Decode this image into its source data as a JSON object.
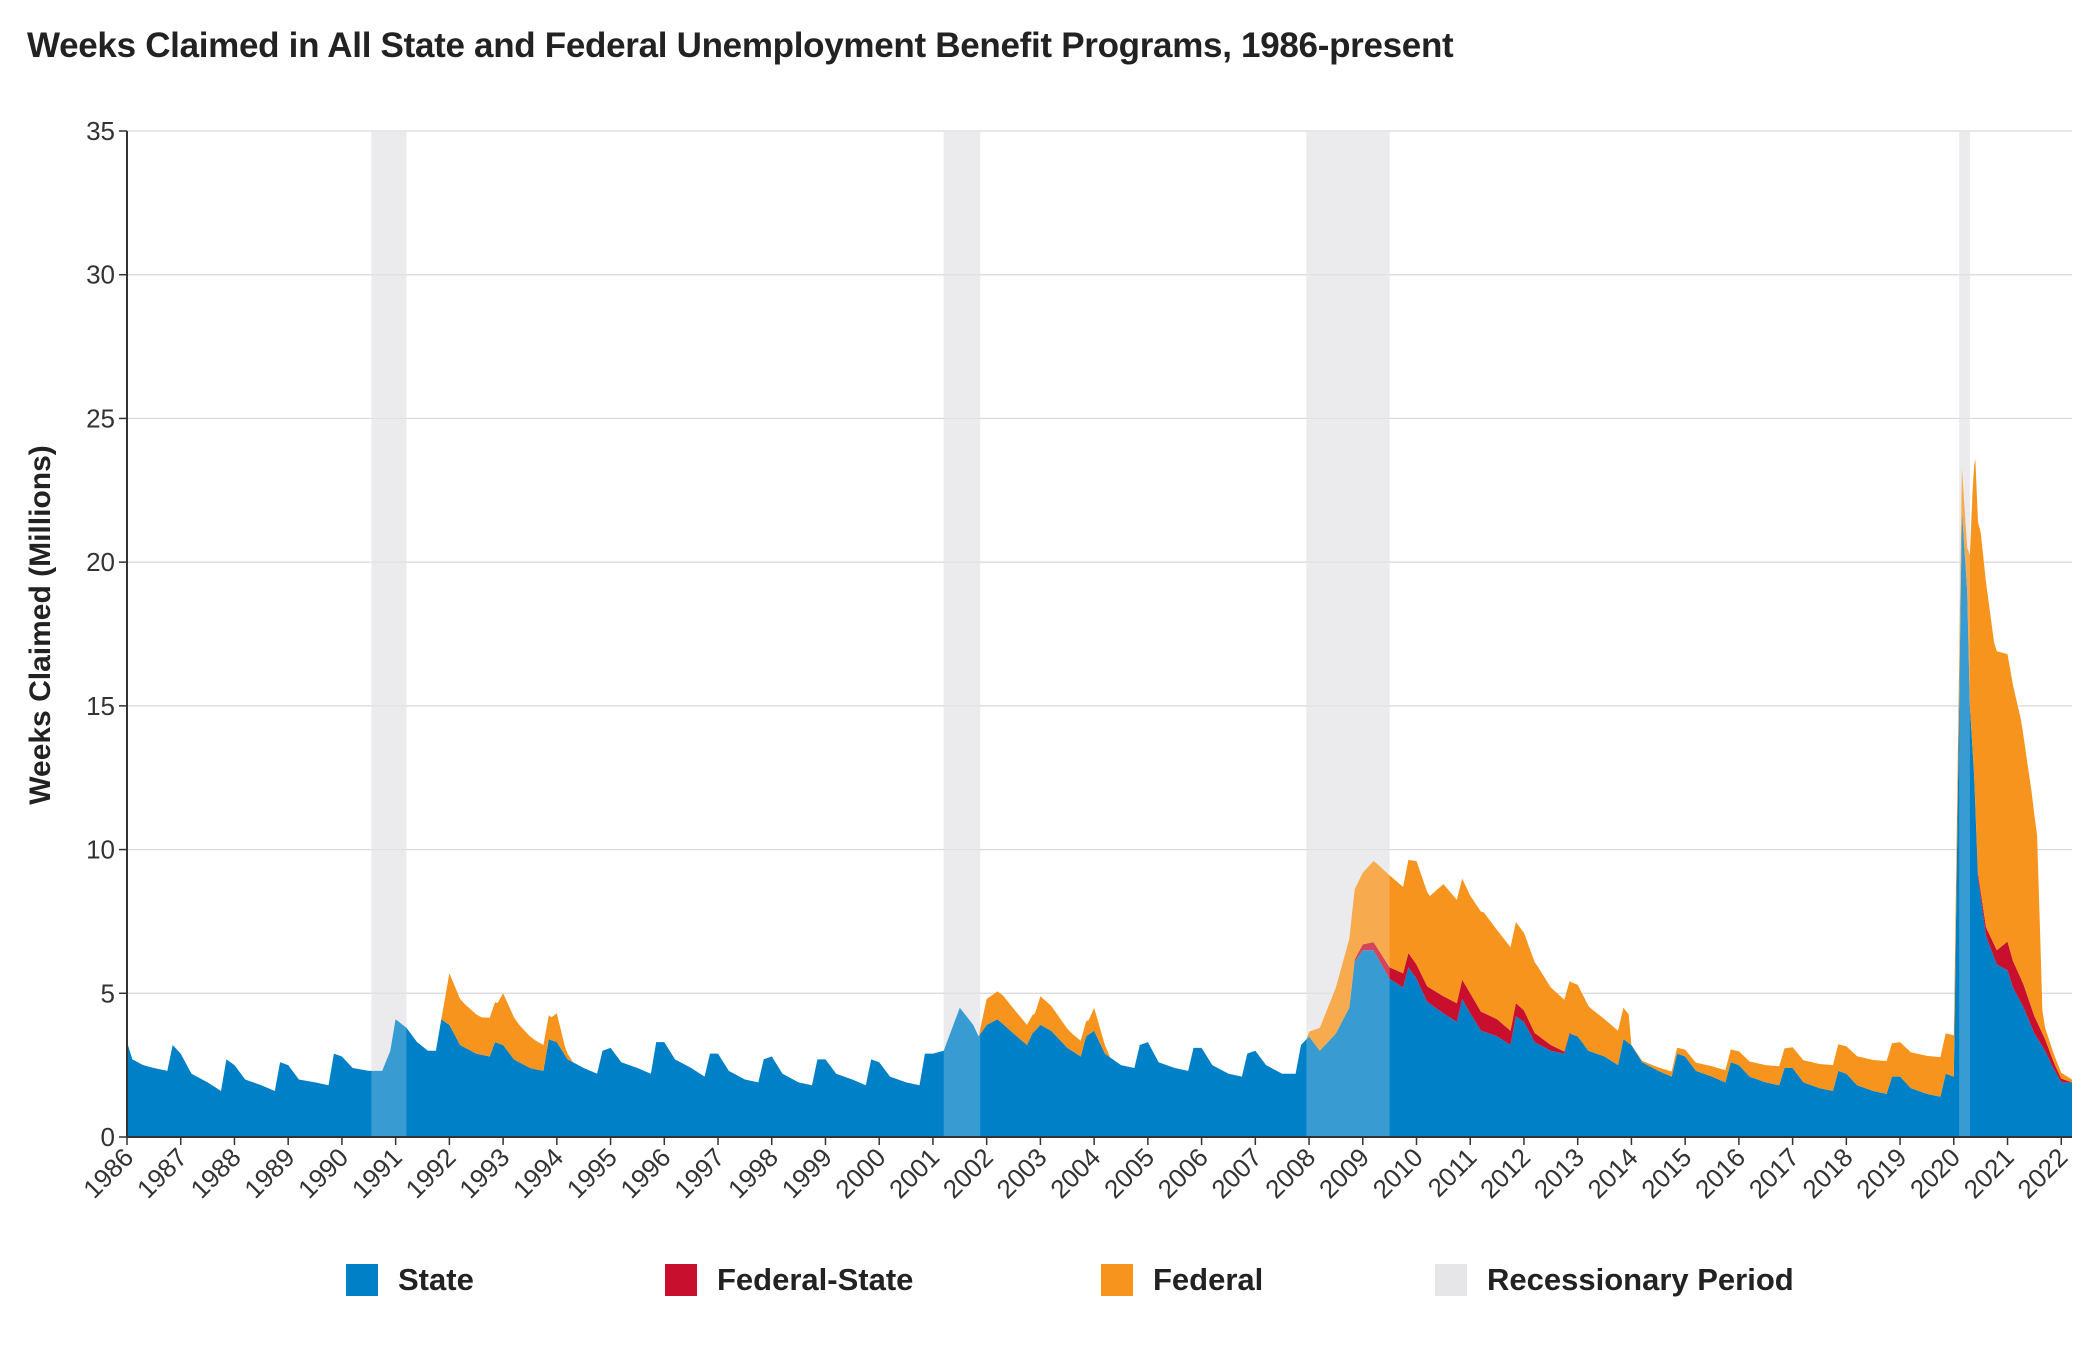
{
  "title": "Weeks Claimed in All State and Federal Unemployment Benefit Programs, 1986-present",
  "chart_data": {
    "type": "area",
    "stacked": true,
    "ylabel": "Weeks Claimed (Millions)",
    "xlabel": "",
    "ylim": [
      0,
      35
    ],
    "yticks": [
      0,
      5,
      10,
      15,
      20,
      25,
      30,
      35
    ],
    "xlim": [
      1986,
      2022.2
    ],
    "xticks": [
      "1986",
      "1987",
      "1988",
      "1989",
      "1990",
      "1991",
      "1992",
      "1993",
      "1994",
      "1995",
      "1996",
      "1997",
      "1998",
      "1999",
      "2000",
      "2001",
      "2002",
      "2003",
      "2004",
      "2005",
      "2006",
      "2007",
      "2008",
      "2009",
      "2010",
      "2011",
      "2012",
      "2013",
      "2014",
      "2015",
      "2016",
      "2017",
      "2018",
      "2019",
      "2020",
      "2021",
      "2022"
    ],
    "grid": "horizontal",
    "legend_position": "bottom",
    "colors": {
      "State": "#0080c6",
      "Federal-State": "#c8102e",
      "Federal": "#f7941d",
      "Recessionary Period": "#e6e6e8"
    },
    "legend": [
      "State",
      "Federal-State",
      "Federal",
      "Recessionary Period"
    ],
    "recessions": [
      {
        "start": 1990.55,
        "end": 1991.2
      },
      {
        "start": 2001.2,
        "end": 2001.88
      },
      {
        "start": 2007.95,
        "end": 2009.5
      },
      {
        "start": 2020.1,
        "end": 2020.3
      }
    ],
    "series": [
      {
        "name": "State",
        "x": [
          1986.0,
          1986.1,
          1986.3,
          1986.5,
          1986.75,
          1986.85,
          1987.0,
          1987.2,
          1987.5,
          1987.75,
          1987.85,
          1988.0,
          1988.2,
          1988.5,
          1988.75,
          1988.85,
          1989.0,
          1989.2,
          1989.5,
          1989.75,
          1989.85,
          1990.0,
          1990.2,
          1990.5,
          1990.75,
          1990.9,
          1991.0,
          1991.2,
          1991.4,
          1991.6,
          1991.75,
          1991.85,
          1992.0,
          1992.2,
          1992.5,
          1992.75,
          1992.85,
          1993.0,
          1993.2,
          1993.5,
          1993.75,
          1993.85,
          1994.0,
          1994.2,
          1994.5,
          1994.75,
          1994.85,
          1995.0,
          1995.2,
          1995.5,
          1995.75,
          1995.85,
          1996.0,
          1996.2,
          1996.5,
          1996.75,
          1996.85,
          1997.0,
          1997.2,
          1997.5,
          1997.75,
          1997.85,
          1998.0,
          1998.2,
          1998.5,
          1998.75,
          1998.85,
          1999.0,
          1999.2,
          1999.5,
          1999.75,
          1999.85,
          2000.0,
          2000.2,
          2000.5,
          2000.75,
          2000.85,
          2001.0,
          2001.2,
          2001.5,
          2001.75,
          2001.85,
          2002.0,
          2002.2,
          2002.5,
          2002.75,
          2002.85,
          2003.0,
          2003.2,
          2003.5,
          2003.75,
          2003.85,
          2004.0,
          2004.2,
          2004.5,
          2004.75,
          2004.85,
          2005.0,
          2005.2,
          2005.5,
          2005.75,
          2005.85,
          2006.0,
          2006.2,
          2006.5,
          2006.75,
          2006.85,
          2007.0,
          2007.2,
          2007.5,
          2007.75,
          2007.85,
          2008.0,
          2008.2,
          2008.5,
          2008.75,
          2008.85,
          2009.0,
          2009.2,
          2009.5,
          2009.75,
          2009.85,
          2010.0,
          2010.2,
          2010.5,
          2010.75,
          2010.85,
          2011.0,
          2011.2,
          2011.5,
          2011.75,
          2011.85,
          2012.0,
          2012.2,
          2012.5,
          2012.75,
          2012.85,
          2013.0,
          2013.2,
          2013.5,
          2013.75,
          2013.85,
          2014.0,
          2014.2,
          2014.5,
          2014.75,
          2014.85,
          2015.0,
          2015.2,
          2015.5,
          2015.75,
          2015.85,
          2016.0,
          2016.2,
          2016.5,
          2016.75,
          2016.85,
          2017.0,
          2017.2,
          2017.5,
          2017.75,
          2017.85,
          2018.0,
          2018.2,
          2018.5,
          2018.75,
          2018.85,
          2019.0,
          2019.2,
          2019.5,
          2019.75,
          2019.85,
          2020.0,
          2020.15,
          2020.25,
          2020.3,
          2020.38,
          2020.45,
          2020.6,
          2020.8,
          2021.0,
          2021.1,
          2021.3,
          2021.5,
          2021.7,
          2021.85,
          2022.0,
          2022.2
        ],
        "values": [
          3.3,
          2.7,
          2.5,
          2.4,
          2.3,
          3.2,
          2.9,
          2.2,
          1.9,
          1.6,
          2.7,
          2.5,
          2.0,
          1.8,
          1.6,
          2.6,
          2.5,
          2.0,
          1.9,
          1.8,
          2.9,
          2.8,
          2.4,
          2.3,
          2.3,
          3.0,
          4.1,
          3.8,
          3.3,
          3.0,
          3.0,
          4.1,
          3.9,
          3.2,
          2.9,
          2.8,
          3.3,
          3.2,
          2.7,
          2.4,
          2.3,
          3.4,
          3.3,
          2.7,
          2.4,
          2.2,
          3.0,
          3.1,
          2.6,
          2.4,
          2.2,
          3.3,
          3.3,
          2.7,
          2.4,
          2.1,
          2.9,
          2.9,
          2.3,
          2.0,
          1.9,
          2.7,
          2.8,
          2.2,
          1.9,
          1.8,
          2.7,
          2.7,
          2.2,
          2.0,
          1.8,
          2.7,
          2.6,
          2.1,
          1.9,
          1.8,
          2.9,
          2.9,
          3.0,
          4.5,
          3.9,
          3.5,
          3.9,
          4.1,
          3.6,
          3.2,
          3.6,
          3.9,
          3.7,
          3.1,
          2.8,
          3.5,
          3.7,
          2.9,
          2.5,
          2.4,
          3.2,
          3.3,
          2.6,
          2.4,
          2.3,
          3.1,
          3.1,
          2.5,
          2.2,
          2.1,
          2.9,
          3.0,
          2.5,
          2.2,
          2.2,
          3.2,
          3.5,
          3.0,
          3.6,
          4.5,
          6.1,
          6.5,
          6.5,
          5.5,
          5.2,
          5.9,
          5.5,
          4.7,
          4.3,
          4.0,
          4.8,
          4.3,
          3.7,
          3.5,
          3.2,
          4.2,
          4.0,
          3.3,
          3.0,
          2.9,
          3.6,
          3.5,
          3.0,
          2.8,
          2.5,
          3.4,
          3.2,
          2.6,
          2.3,
          2.1,
          2.9,
          2.8,
          2.3,
          2.1,
          1.9,
          2.6,
          2.5,
          2.1,
          1.9,
          1.8,
          2.4,
          2.4,
          1.9,
          1.7,
          1.6,
          2.3,
          2.2,
          1.8,
          1.6,
          1.5,
          2.1,
          2.1,
          1.7,
          1.5,
          1.4,
          2.2,
          2.1,
          21.8,
          19.0,
          15.0,
          12.5,
          9.0,
          7.0,
          6.0,
          5.8,
          5.2,
          4.5,
          3.6,
          3.0,
          2.4,
          1.9,
          1.9
        ]
      },
      {
        "name": "Federal-State",
        "x": [
          2008.75,
          2009.0,
          2009.5,
          2009.75,
          2010.0,
          2010.5,
          2011.0,
          2011.5,
          2012.0,
          2012.5,
          2012.7,
          2012.9,
          2020.3,
          2020.8,
          2021.0,
          2021.3,
          2021.6,
          2021.9,
          2022.2
        ],
        "values": [
          0.0,
          0.2,
          0.4,
          0.5,
          0.5,
          0.6,
          0.7,
          0.6,
          0.4,
          0.2,
          0.1,
          0.0,
          0.0,
          0.5,
          1.0,
          0.8,
          0.5,
          0.2,
          0.0
        ]
      },
      {
        "name": "Federal",
        "x": [
          1991.85,
          1992.0,
          1992.3,
          1992.6,
          1992.9,
          1993.0,
          1993.3,
          1993.6,
          1993.9,
          1994.0,
          1994.15,
          1994.3,
          2001.85,
          2002.0,
          2002.3,
          2002.6,
          2002.9,
          2003.0,
          2003.3,
          2003.6,
          2003.9,
          2004.0,
          2004.2,
          2004.3,
          2007.95,
          2008.2,
          2008.5,
          2008.75,
          2009.0,
          2009.25,
          2009.5,
          2009.75,
          2010.0,
          2010.25,
          2010.5,
          2010.75,
          2011.0,
          2011.25,
          2011.5,
          2011.75,
          2012.0,
          2012.25,
          2012.5,
          2012.75,
          2013.0,
          2013.25,
          2013.5,
          2013.75,
          2013.95,
          2014.0,
          2020.25,
          2020.35,
          2020.4,
          2020.5,
          2020.6,
          2020.75,
          2021.0,
          2021.25,
          2021.45,
          2021.55,
          2021.65,
          2021.7,
          2021.85,
          2022.0,
          2022.2
        ],
        "values": [
          0.0,
          1.8,
          1.5,
          1.3,
          1.4,
          1.8,
          1.3,
          1.0,
          0.8,
          1.0,
          0.3,
          0.0,
          0.0,
          0.9,
          1.0,
          0.8,
          0.6,
          1.0,
          0.8,
          0.6,
          0.5,
          0.8,
          0.3,
          0.0,
          0.0,
          0.8,
          1.6,
          2.4,
          2.5,
          2.9,
          3.2,
          3.0,
          3.6,
          3.2,
          3.9,
          3.6,
          3.4,
          3.5,
          3.1,
          2.9,
          2.7,
          2.4,
          2.0,
          1.8,
          1.8,
          1.5,
          1.3,
          1.2,
          1.0,
          0.0,
          1.5,
          9.0,
          12.0,
          12.5,
          12.0,
          10.5,
          10.0,
          9.0,
          7.5,
          6.5,
          0.8,
          0.4,
          0.3,
          0.2,
          0.1
        ]
      }
    ]
  }
}
